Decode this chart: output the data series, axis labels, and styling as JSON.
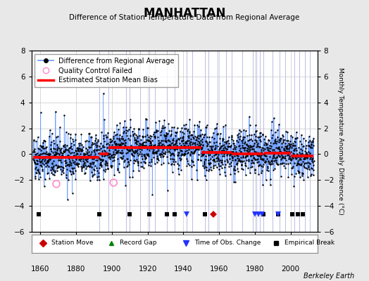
{
  "title": "MANHATTAN",
  "subtitle": "Difference of Station Temperature Data from Regional Average",
  "ylabel_right": "Monthly Temperature Anomaly Difference (°C)",
  "credit": "Berkeley Earth",
  "xlim": [
    1855,
    2015
  ],
  "ylim": [
    -6,
    8
  ],
  "yticks": [
    -6,
    -4,
    -2,
    0,
    2,
    4,
    6,
    8
  ],
  "xticks": [
    1860,
    1880,
    1900,
    1920,
    1940,
    1960,
    1980,
    2000
  ],
  "bg_color": "#e8e8e8",
  "plot_bg_color": "#ffffff",
  "seed": 42,
  "data_start_year": 1856,
  "data_end_year": 2013,
  "bias_segments": [
    {
      "start": 1856,
      "end": 1893,
      "bias": -0.25
    },
    {
      "start": 1893,
      "end": 1898,
      "bias": 0.05
    },
    {
      "start": 1898,
      "end": 1950,
      "bias": 0.5
    },
    {
      "start": 1950,
      "end": 1967,
      "bias": 0.15
    },
    {
      "start": 1967,
      "end": 1985,
      "bias": 0.05
    },
    {
      "start": 1985,
      "end": 2000,
      "bias": 0.1
    },
    {
      "start": 2000,
      "end": 2013,
      "bias": -0.15
    }
  ],
  "station_moves": [
    1957
  ],
  "record_gaps": [],
  "obs_changes": [
    1942,
    1980,
    1982,
    1984,
    1993
  ],
  "empirical_breaks": [
    1859,
    1893,
    1910,
    1921,
    1931,
    1935,
    1952,
    1985,
    1993,
    2001,
    2004,
    2007
  ],
  "qc_fail_points": [
    {
      "year": 1869,
      "value": -2.3
    },
    {
      "year": 1901,
      "value": -2.2
    }
  ],
  "vertical_lines": [
    1893,
    1898,
    1908,
    1910,
    1916,
    1921,
    1924,
    1931,
    1935,
    1942,
    1945,
    1952,
    1954,
    1959,
    1964,
    1967,
    1973,
    1979,
    1981,
    1983,
    1985,
    1990,
    1994,
    1997,
    2002,
    2005,
    2008,
    2011
  ],
  "grid_color": "#c8c8c8",
  "line_color": "#6699ff",
  "bias_color": "#ff0000",
  "marker_color": "#000000",
  "marker_size": 3.0,
  "noise_std": 0.85
}
